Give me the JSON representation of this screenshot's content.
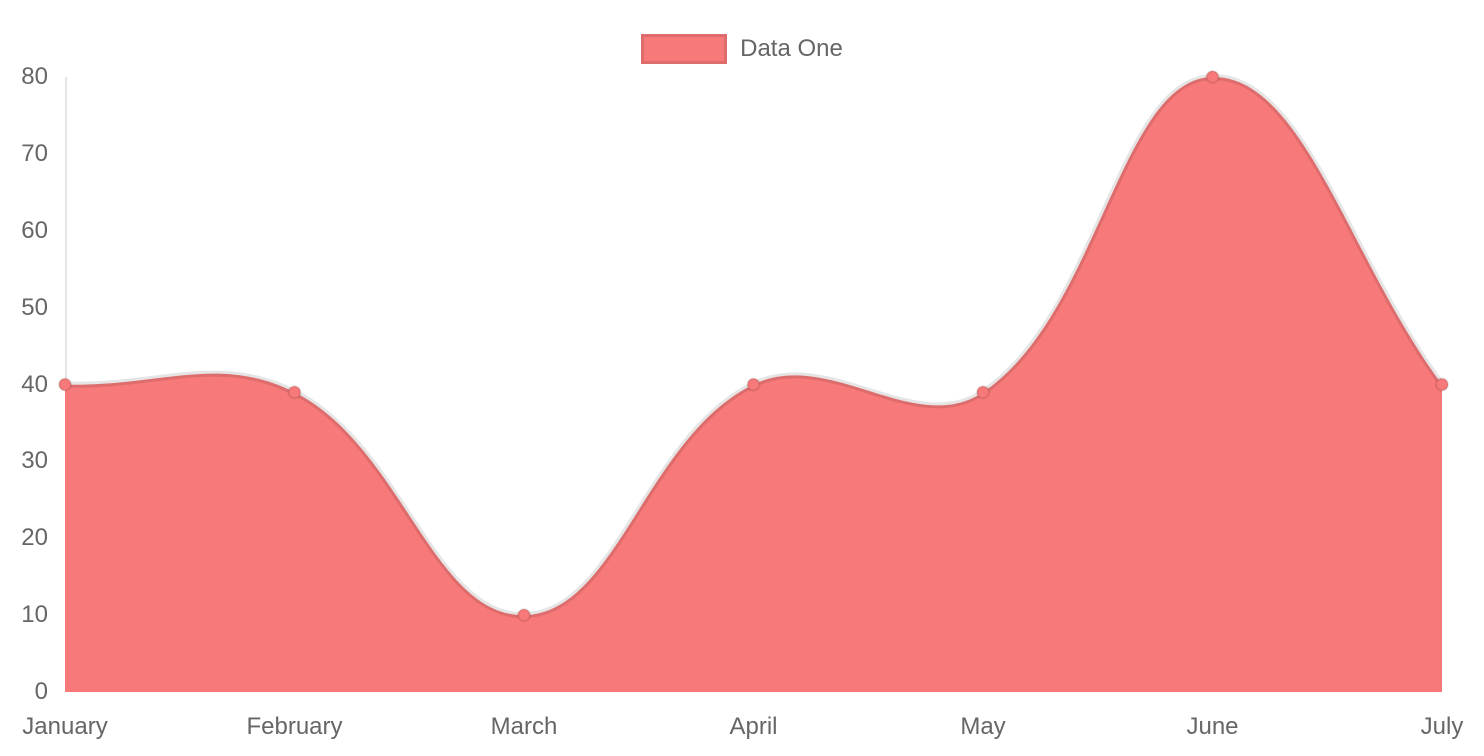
{
  "chart_data": {
    "type": "area",
    "title": "",
    "xlabel": "",
    "ylabel": "",
    "categories": [
      "January",
      "February",
      "March",
      "April",
      "May",
      "June",
      "July"
    ],
    "series": [
      {
        "name": "Data One",
        "values": [
          40,
          39,
          10,
          40,
          39,
          80,
          40
        ]
      }
    ],
    "ylim": [
      0,
      80
    ],
    "y_ticks": [
      0,
      10,
      20,
      30,
      40,
      50,
      60,
      70,
      80
    ],
    "grid": false,
    "legend_position": "top",
    "line_tension": 0.4,
    "colors": {
      "fill": "#f87979",
      "line": "rgba(0,0,0,0.1)",
      "point_fill": "#f87979",
      "point_border": "rgba(0,0,0,0.1)",
      "axis_line": "rgba(0,0,0,0.1)",
      "tick_text": "#666666"
    }
  }
}
